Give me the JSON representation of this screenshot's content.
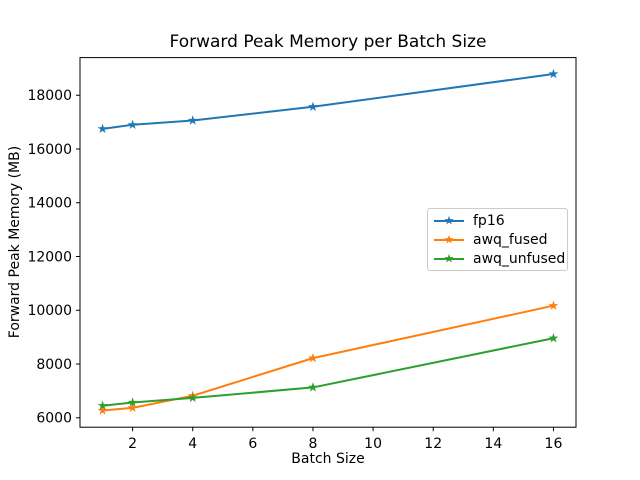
{
  "figure": {
    "background": "#ffffff",
    "text_color": "#000000",
    "legend_border_color": "#cccccc"
  },
  "chart_data": {
    "type": "line",
    "title": "Forward Peak Memory per Batch Size",
    "xlabel": "Batch Size",
    "ylabel": "Forward Peak Memory (MB)",
    "x": [
      1,
      2,
      4,
      8,
      16
    ],
    "series": [
      {
        "name": "fp16",
        "color": "#1f77b4",
        "marker": "star",
        "values": [
          16750,
          16900,
          17060,
          17570,
          18790
        ]
      },
      {
        "name": "awq_fused",
        "color": "#ff7f0e",
        "marker": "star",
        "values": [
          6270,
          6370,
          6820,
          8220,
          10170
        ]
      },
      {
        "name": "awq_unfused",
        "color": "#2ca02c",
        "marker": "star",
        "values": [
          6450,
          6570,
          6740,
          7130,
          8960
        ]
      }
    ],
    "xlim": [
      0.25,
      16.75
    ],
    "ylim": [
      5650,
      19400
    ],
    "xticks": [
      2,
      4,
      6,
      8,
      10,
      12,
      14,
      16
    ],
    "yticks": [
      6000,
      8000,
      10000,
      12000,
      14000,
      16000,
      18000
    ],
    "grid": false,
    "legend_position": "center-right",
    "marker_glyph": "★"
  }
}
